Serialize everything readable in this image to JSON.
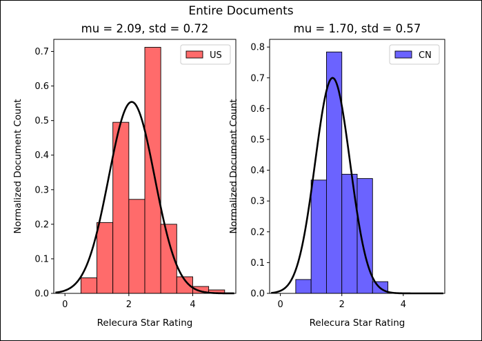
{
  "figure": {
    "suptitle": "Entire Documents"
  },
  "colors": {
    "us_fill": "#ff6b6b",
    "cn_fill": "#6b63ff",
    "edge": "#000000",
    "curve": "#000000"
  },
  "chart_data": [
    {
      "type": "bar",
      "title": "mu = 2.09,  std = 0.72",
      "xlabel": "Relecura Star Rating",
      "ylabel": "Normalized Document Count",
      "xlim": [
        -0.35,
        5.35
      ],
      "ylim": [
        0,
        0.735
      ],
      "xticks": [
        0,
        2,
        4
      ],
      "yticks": [
        0.0,
        0.1,
        0.2,
        0.3,
        0.4,
        0.5,
        0.6,
        0.7
      ],
      "ytick_labels": [
        "0.0",
        "0.1",
        "0.2",
        "0.3",
        "0.4",
        "0.5",
        "0.6",
        "0.7"
      ],
      "legend": {
        "label": "US",
        "position": "upper right"
      },
      "bin_edges": [
        0.5,
        1.0,
        1.5,
        2.0,
        2.5,
        3.0,
        3.5,
        4.0,
        4.5,
        5.0
      ],
      "values": [
        0.045,
        0.205,
        0.495,
        0.272,
        0.712,
        0.2,
        0.048,
        0.02,
        0.01
      ],
      "fit": {
        "mu": 2.09,
        "std": 0.72,
        "x_range": [
          -0.3,
          5.3
        ]
      }
    },
    {
      "type": "bar",
      "title": "mu = 1.70,  std = 0.57",
      "xlabel": "Relecura Star Rating",
      "ylabel": "Normalized Document Count",
      "xlim": [
        -0.35,
        5.35
      ],
      "ylim": [
        0,
        0.825
      ],
      "xticks": [
        0,
        2,
        4
      ],
      "yticks": [
        0.0,
        0.1,
        0.2,
        0.3,
        0.4,
        0.5,
        0.6,
        0.7,
        0.8
      ],
      "ytick_labels": [
        "0.0",
        "0.1",
        "0.2",
        "0.3",
        "0.4",
        "0.5",
        "0.6",
        "0.7",
        "0.8"
      ],
      "legend": {
        "label": "CN",
        "position": "upper right"
      },
      "bin_edges": [
        0.5,
        1.0,
        1.5,
        2.0,
        2.5,
        3.0,
        3.5
      ],
      "values": [
        0.045,
        0.368,
        0.784,
        0.387,
        0.373,
        0.038
      ],
      "fit": {
        "mu": 1.7,
        "std": 0.57,
        "x_range": [
          -0.3,
          5.3
        ]
      }
    }
  ]
}
